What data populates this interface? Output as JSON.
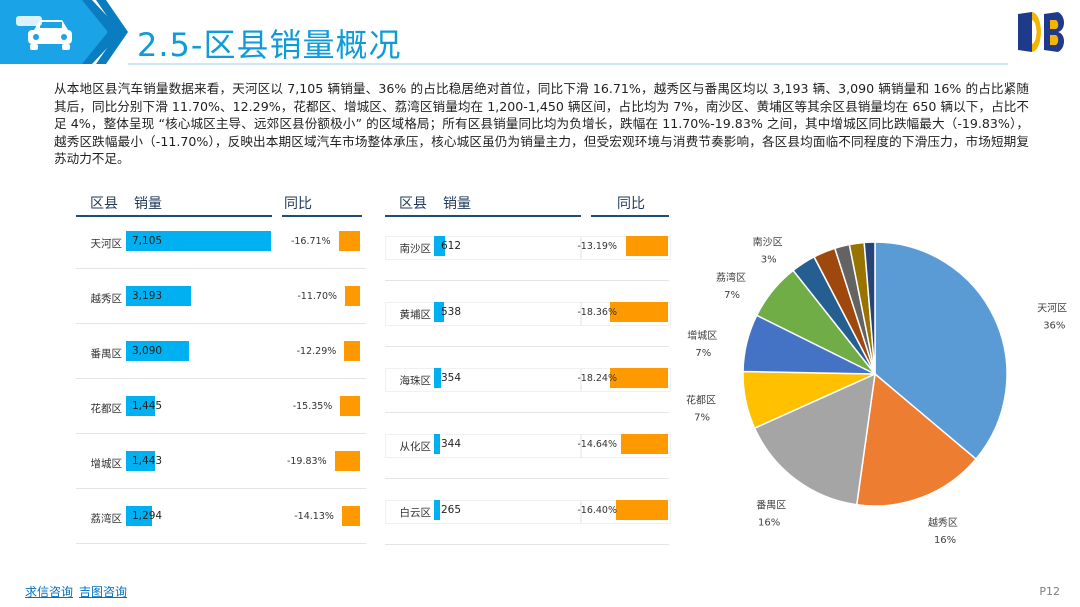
{
  "header": {
    "title": "2.5-区县销量概况"
  },
  "intro": "从本地区县汽车销量数据来看，天河区以 7,105 辆销量、36% 的占比稳居绝对首位，同比下滑 16.71%，越秀区与番禺区均以 3,193 辆、3,090 辆销量和 16% 的占比紧随其后，同比分别下滑 11.70%、12.29%，花都区、增城区、荔湾区销量均在 1,200-1,450 辆区间，占比均为 7%，南沙区、黄埔区等其余区县销量均在 650 辆以下，占比不足 4%，整体呈现 “核心城区主导、远郊区县份额极小” 的区域格局；所有区县销量同比均为负增长，跌幅在 11.70%-19.83% 之间，其中增城区同比跌幅最大（-19.83%），越秀区跌幅最小（-11.70%），反映出本期区域汽车市场整体承压，核心城区虽仍为销量主力，但受宏观环境与消费节奏影响，各区县均面临不同程度的下滑压力，市场短期复苏动力不足。",
  "table_headers": {
    "district": "区县",
    "sales": "销量",
    "yoy": "同比"
  },
  "chart_data": [
    {
      "type": "bar",
      "categories": [
        "天河区",
        "越秀区",
        "番禺区",
        "花都区",
        "增城区",
        "荔湾区"
      ],
      "series": [
        {
          "values": [
            7105,
            3193,
            3090,
            1445,
            1443,
            1294
          ],
          "labels": [
            "7,105",
            "3,193",
            "3,090",
            "1,445",
            "1,443",
            "1,294"
          ]
        },
        {
          "values": [
            -16.71,
            -11.7,
            -12.29,
            -15.35,
            -19.83,
            -14.13
          ],
          "labels": [
            "-16.71%",
            "-11.70%",
            "-12.29%",
            "-15.35%",
            "-19.83%",
            "-14.13%"
          ]
        }
      ],
      "colors": [
        "#00b0f0",
        "#ff9900"
      ]
    },
    {
      "type": "bar",
      "categories": [
        "南沙区",
        "黄埔区",
        "海珠区",
        "从化区",
        "白云区"
      ],
      "series": [
        {
          "values": [
            612,
            538,
            354,
            344,
            265
          ],
          "labels": [
            "612",
            "538",
            "354",
            "344",
            "265"
          ]
        },
        {
          "values": [
            -13.19,
            -18.36,
            -18.24,
            -14.64,
            -16.4
          ],
          "labels": [
            "-13.19%",
            "-18.36%",
            "-18.24%",
            "-14.64%",
            "-16.40%"
          ]
        }
      ],
      "colors": [
        "#00b0f0",
        "#ff9900"
      ]
    },
    {
      "type": "pie",
      "slices": [
        {
          "label": "天河区",
          "pct_label": "36%",
          "value": 36,
          "color": "#5b9bd5",
          "show_label": true
        },
        {
          "label": "越秀区",
          "pct_label": "16%",
          "value": 16,
          "color": "#ed7d31",
          "show_label": true
        },
        {
          "label": "番禺区",
          "pct_label": "16%",
          "value": 16,
          "color": "#a5a5a5",
          "show_label": true
        },
        {
          "label": "花都区",
          "pct_label": "7%",
          "value": 7,
          "color": "#ffc000",
          "show_label": true
        },
        {
          "label": "增城区",
          "pct_label": "7%",
          "value": 7,
          "color": "#4472c4",
          "show_label": true
        },
        {
          "label": "荔湾区",
          "pct_label": "7%",
          "value": 7,
          "color": "#70ad47",
          "show_label": true
        },
        {
          "label": "南沙区",
          "pct_label": "3%",
          "value": 3,
          "color": "#255e91",
          "show_label": true
        },
        {
          "label": "",
          "pct_label": "",
          "value": 2.7,
          "color": "#9e480e",
          "show_label": false
        },
        {
          "label": "",
          "pct_label": "",
          "value": 1.8,
          "color": "#636363",
          "show_label": false
        },
        {
          "label": "",
          "pct_label": "",
          "value": 1.8,
          "color": "#997300",
          "show_label": false
        },
        {
          "label": "",
          "pct_label": "",
          "value": 1.3,
          "color": "#264478",
          "show_label": false
        }
      ]
    }
  ],
  "footer": {
    "link1": "求信咨询",
    "link2": "吉图咨询",
    "page": "P12"
  },
  "colors": {
    "accent": "#0e9bd8",
    "bar": "#00b0f0",
    "yoy": "#ff9900"
  }
}
